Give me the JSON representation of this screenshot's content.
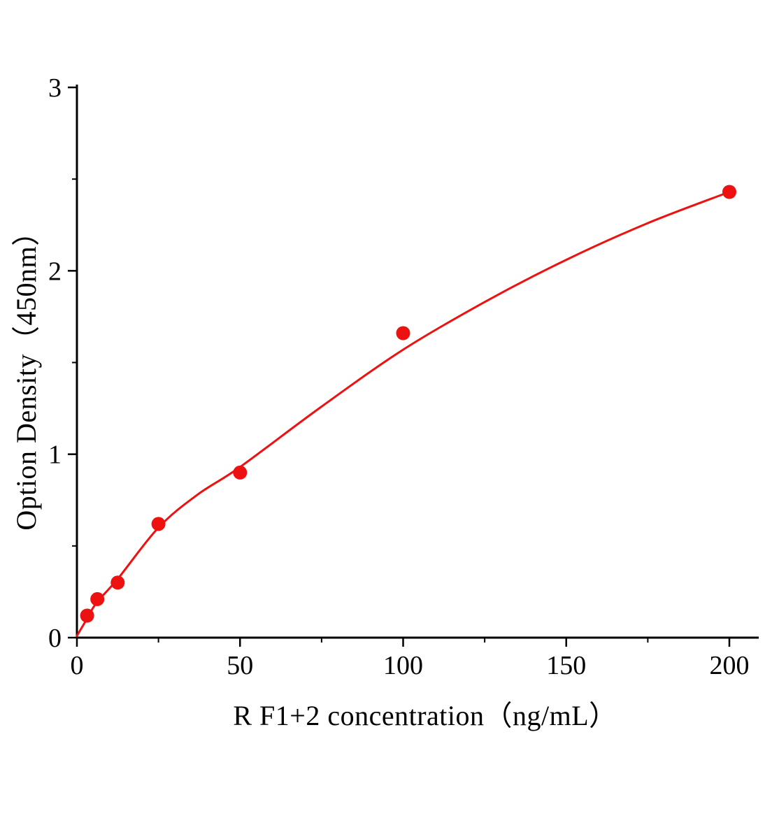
{
  "chart_data": {
    "type": "scatter",
    "title": "",
    "xlabel": "R F1+2  concentration（ng/mL）",
    "ylabel": "Option Density（450nm）",
    "xlim": [
      0,
      209
    ],
    "ylim": [
      0,
      3
    ],
    "x_major_ticks": [
      0,
      50,
      100,
      150,
      200
    ],
    "x_minor_ticks": [
      25,
      75,
      125,
      175
    ],
    "y_major_ticks": [
      0,
      1,
      2,
      3
    ],
    "y_minor_ticks": [
      0.5,
      1.5,
      2.5
    ],
    "grid": false,
    "legend": "none",
    "series": [
      {
        "name": "R F1+2 standard curve points",
        "marker": "circle",
        "points": [
          [
            3.125,
            0.12
          ],
          [
            6.25,
            0.21
          ],
          [
            12.5,
            0.3
          ],
          [
            25,
            0.62
          ],
          [
            50,
            0.9
          ],
          [
            100,
            1.66
          ],
          [
            200,
            2.43
          ]
        ]
      }
    ],
    "fit_curve": {
      "name": "fitted standard curve",
      "samples": [
        [
          0,
          0.01
        ],
        [
          3,
          0.1
        ],
        [
          6,
          0.19
        ],
        [
          12.5,
          0.32
        ],
        [
          25,
          0.6
        ],
        [
          37,
          0.78
        ],
        [
          50,
          0.93
        ],
        [
          75,
          1.26
        ],
        [
          100,
          1.57
        ],
        [
          125,
          1.83
        ],
        [
          150,
          2.06
        ],
        [
          175,
          2.26
        ],
        [
          200,
          2.43
        ]
      ]
    },
    "colors": {
      "accent": "#ee1111",
      "axis": "#000000",
      "background": "#ffffff"
    },
    "marker_radius": 10,
    "line_width": 3
  }
}
